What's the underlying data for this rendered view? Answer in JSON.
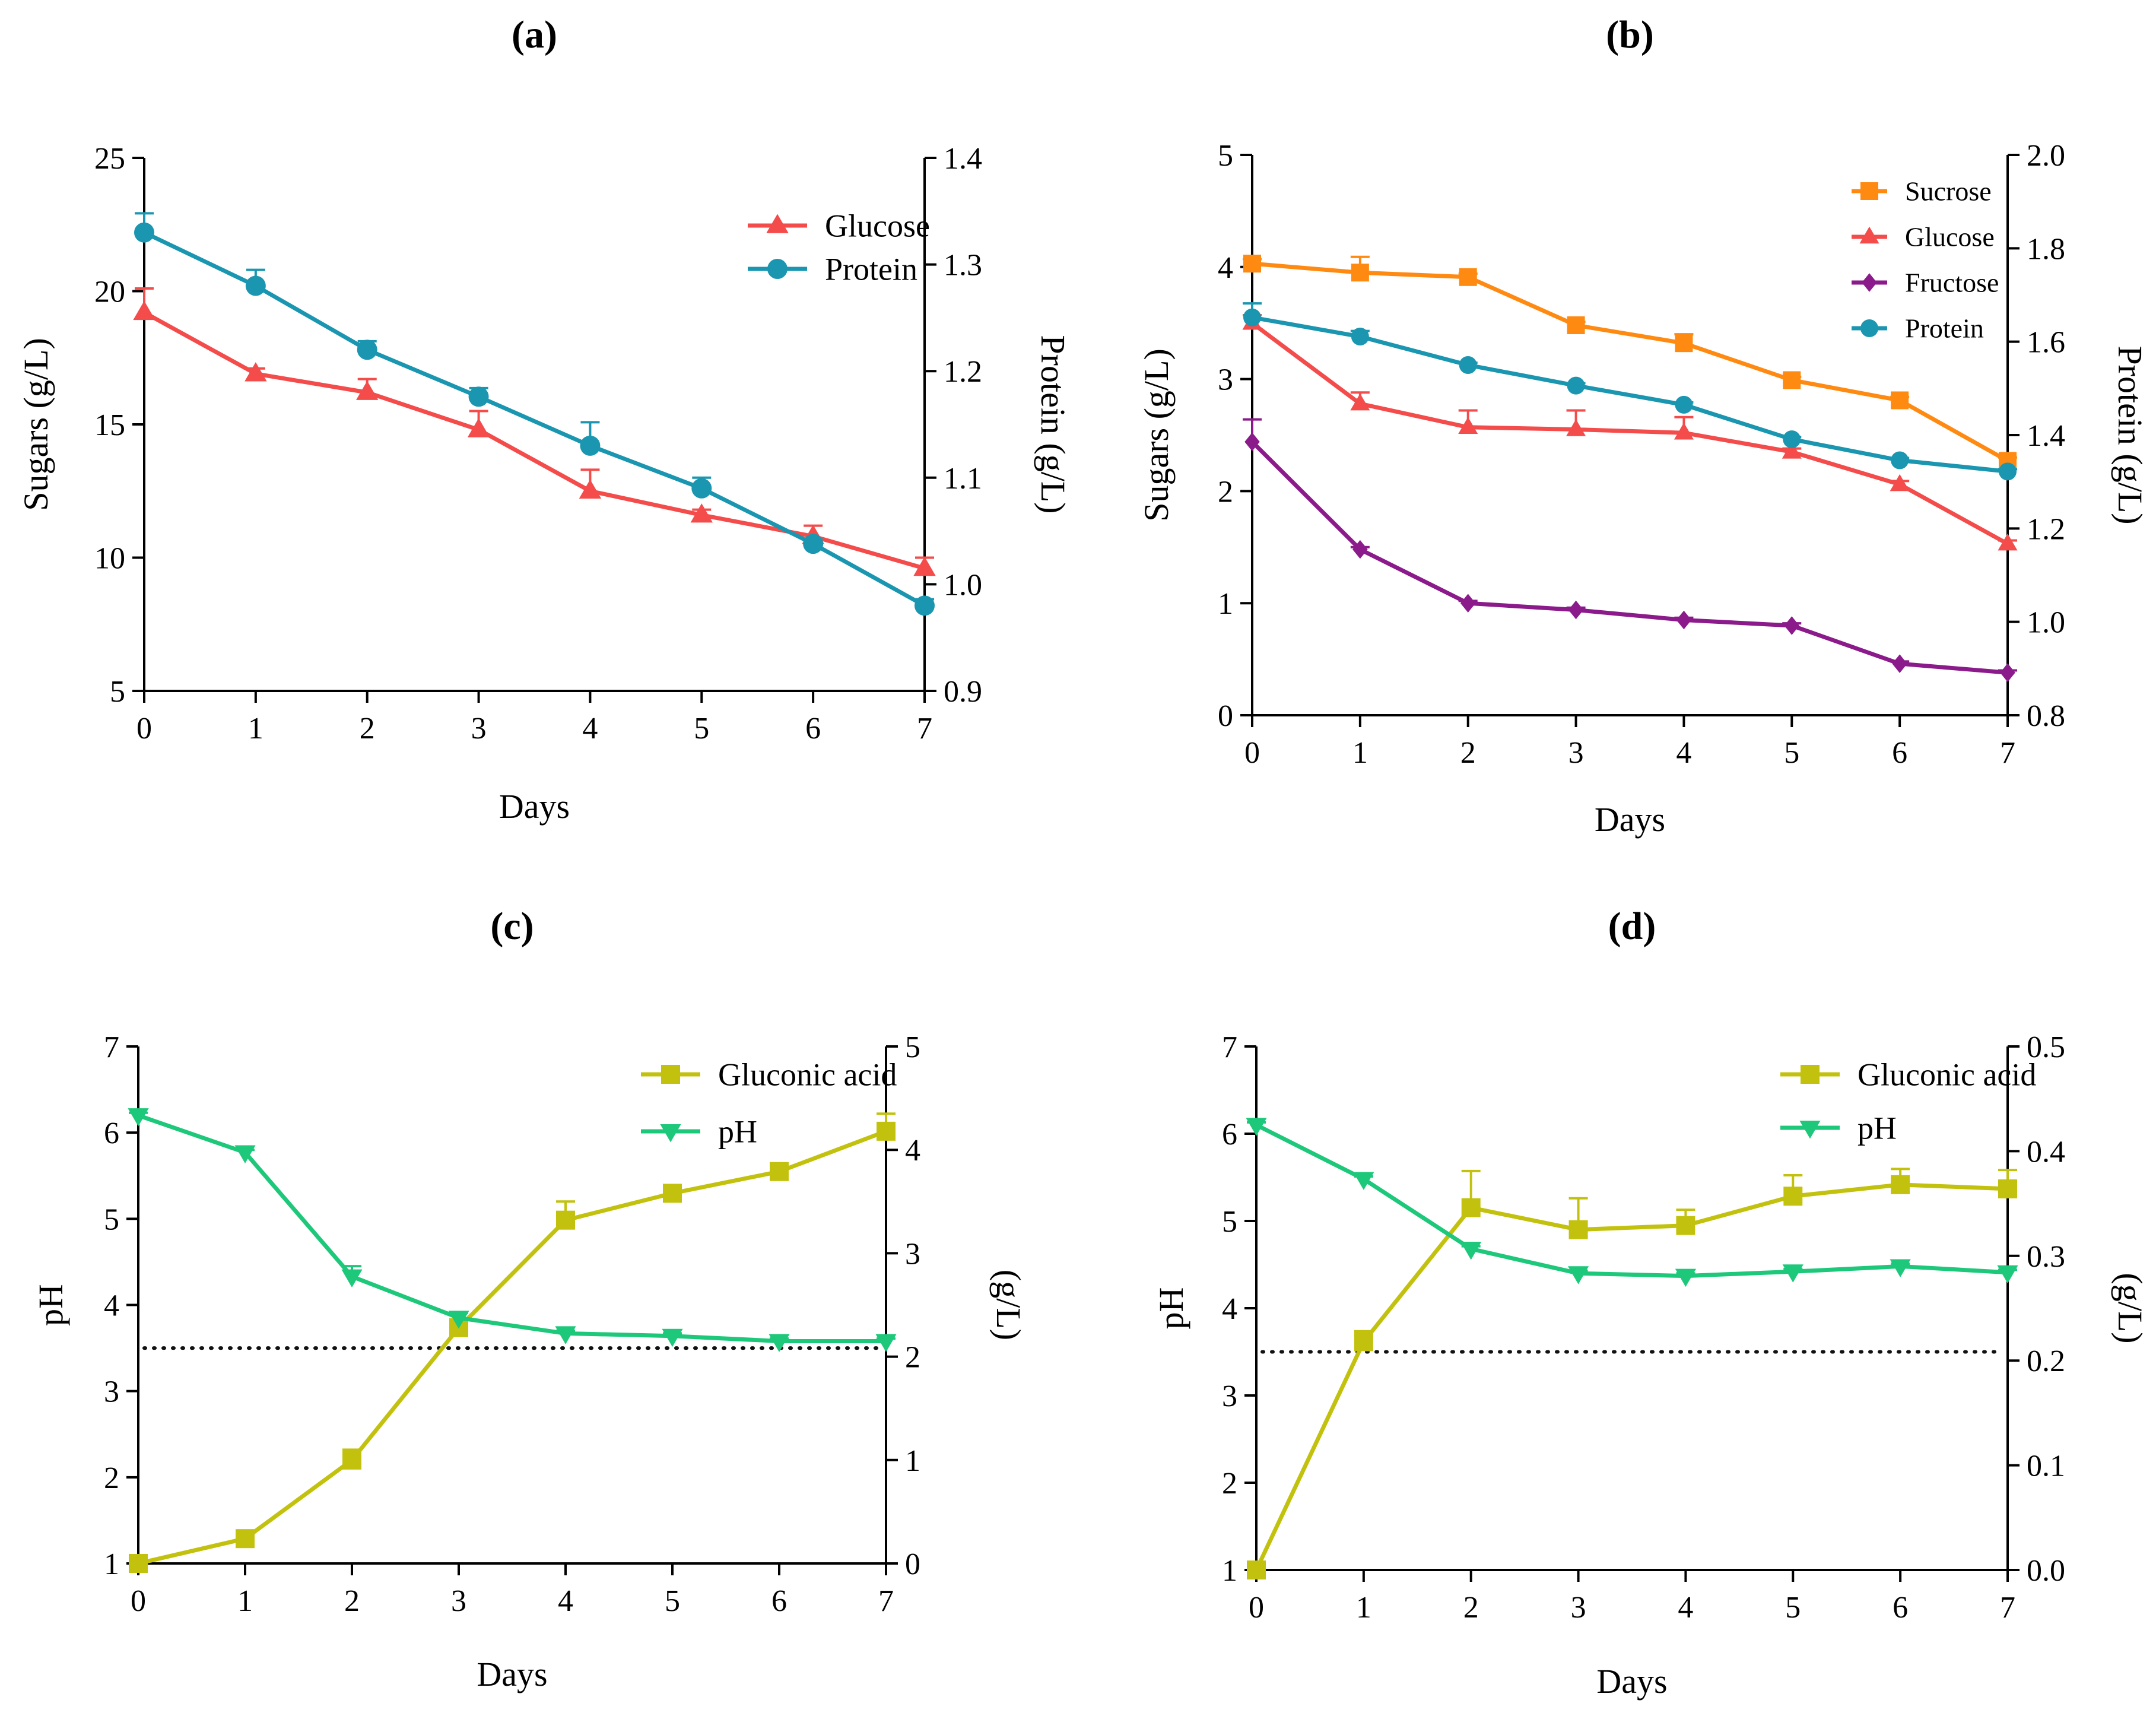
{
  "chart_data": [
    {
      "id": "a",
      "type": "line",
      "title": "(a)",
      "xlabel": "Days",
      "ylabel": "Sugars (g/L)",
      "y2label": "Protein (g/L)",
      "x": [
        0,
        1,
        2,
        3,
        4,
        5,
        6,
        7
      ],
      "xlim": [
        0,
        7
      ],
      "xticks": [
        "0",
        "1",
        "2",
        "3",
        "4",
        "5",
        "6",
        "7"
      ],
      "ylim": [
        5,
        25
      ],
      "yticks": [
        "5",
        "10",
        "15",
        "20",
        "25"
      ],
      "y2lim": [
        0.9,
        1.4
      ],
      "y2ticks": [
        "0.9",
        "1.0",
        "1.1",
        "1.2",
        "1.3",
        "1.4"
      ],
      "legend_position": "top-right",
      "series": [
        {
          "name": "Glucose",
          "axis": "left",
          "color": "#f44b4b",
          "marker": "triangle-up",
          "values": [
            19.2,
            16.9,
            16.2,
            14.8,
            12.5,
            11.6,
            10.8,
            9.6
          ],
          "errors": [
            0.9,
            0.2,
            0.5,
            0.7,
            0.8,
            0.2,
            0.4,
            0.4
          ]
        },
        {
          "name": "Protein",
          "axis": "right",
          "color": "#1a96b0",
          "marker": "circle",
          "values": [
            1.33,
            1.28,
            1.22,
            1.176,
            1.13,
            1.09,
            1.038,
            0.98
          ],
          "errors": [
            0.018,
            0.015,
            0.008,
            0.008,
            0.022,
            0.01,
            0.004,
            0.006
          ]
        }
      ]
    },
    {
      "id": "b",
      "type": "line",
      "title": "(b)",
      "xlabel": "Days",
      "ylabel": "Sugars (g/L)",
      "y2label": "Protein (g/L)",
      "x": [
        0,
        1,
        2,
        3,
        4,
        5,
        6,
        7
      ],
      "xlim": [
        0,
        7
      ],
      "xticks": [
        "0",
        "1",
        "2",
        "3",
        "4",
        "5",
        "6",
        "7"
      ],
      "ylim": [
        0,
        5
      ],
      "yticks": [
        "0",
        "1",
        "2",
        "3",
        "4",
        "5"
      ],
      "y2lim": [
        0.8,
        2.0
      ],
      "y2ticks": [
        "0.8",
        "1.0",
        "1.2",
        "1.4",
        "1.6",
        "1.8",
        "2.0"
      ],
      "legend_position": "top-right",
      "series": [
        {
          "name": "Sucrose",
          "axis": "left",
          "color": "#ff8a12",
          "marker": "square",
          "values": [
            4.03,
            3.95,
            3.91,
            3.48,
            3.32,
            2.99,
            2.81,
            2.27
          ],
          "errors": [
            0.04,
            0.14,
            0.03,
            0.03,
            0.08,
            0.03,
            0.03,
            0.03
          ]
        },
        {
          "name": "Glucose",
          "axis": "left",
          "color": "#f44b4b",
          "marker": "triangle-up",
          "values": [
            3.5,
            2.78,
            2.57,
            2.55,
            2.52,
            2.35,
            2.06,
            1.53
          ],
          "errors": [
            0.07,
            0.1,
            0.15,
            0.17,
            0.14,
            0.03,
            0.03,
            0.03
          ]
        },
        {
          "name": "Fructose",
          "axis": "left",
          "color": "#8b1a8b",
          "marker": "diamond",
          "values": [
            2.44,
            1.48,
            1.0,
            0.94,
            0.85,
            0.8,
            0.46,
            0.38
          ],
          "errors": [
            0.2,
            0.02,
            0.02,
            0.02,
            0.02,
            0.02,
            0.02,
            0.02
          ]
        },
        {
          "name": "Protein",
          "axis": "right",
          "color": "#1a96b0",
          "marker": "circle",
          "values": [
            1.652,
            1.611,
            1.55,
            1.506,
            1.465,
            1.391,
            1.346,
            1.322
          ],
          "errors": [
            0.03,
            0.012,
            0.005,
            0.005,
            0.005,
            0.005,
            0.005,
            0.005
          ]
        }
      ]
    },
    {
      "id": "c",
      "type": "line",
      "title": "(c)",
      "xlabel": "Days",
      "ylabel": "pH",
      "y2label": "(g/L)",
      "x": [
        0,
        1,
        2,
        3,
        4,
        5,
        6,
        7
      ],
      "xlim": [
        0,
        7
      ],
      "xticks": [
        "0",
        "1",
        "2",
        "3",
        "4",
        "5",
        "6",
        "7"
      ],
      "ylim": [
        1,
        7
      ],
      "yticks": [
        "1",
        "2",
        "3",
        "4",
        "5",
        "6",
        "7"
      ],
      "y2lim": [
        0,
        5
      ],
      "y2ticks": [
        "0",
        "1",
        "2",
        "3",
        "4",
        "5"
      ],
      "reference_line": {
        "axis": "left",
        "value": 3.5,
        "style": "dotted"
      },
      "legend_position": "top-right",
      "series": [
        {
          "name": "Gluconic acid",
          "axis": "right",
          "color": "#c2c20e",
          "marker": "square",
          "values": [
            0.0,
            0.24,
            1.0,
            2.28,
            3.32,
            3.58,
            3.79,
            4.18
          ],
          "errors": [
            0.03,
            0.03,
            0.1,
            0.08,
            0.18,
            0.05,
            0.08,
            0.17
          ]
        },
        {
          "name": "pH",
          "axis": "left",
          "color": "#1ec87a",
          "marker": "triangle-down",
          "values": [
            6.2,
            5.77,
            4.33,
            3.85,
            3.67,
            3.64,
            3.58,
            3.58
          ],
          "errors": [
            0.03,
            0.03,
            0.12,
            0.06,
            0.03,
            0.03,
            0.03,
            0.03
          ]
        }
      ]
    },
    {
      "id": "d",
      "type": "line",
      "title": "(d)",
      "xlabel": "Days",
      "ylabel": "pH",
      "y2label": "(g/L)",
      "x": [
        0,
        1,
        2,
        3,
        4,
        5,
        6,
        7
      ],
      "xlim": [
        0,
        7
      ],
      "xticks": [
        "0",
        "1",
        "2",
        "3",
        "4",
        "5",
        "6",
        "7"
      ],
      "ylim": [
        1,
        7
      ],
      "yticks": [
        "1",
        "2",
        "3",
        "4",
        "5",
        "6",
        "7"
      ],
      "y2lim": [
        0.0,
        0.5
      ],
      "y2ticks": [
        "0.0",
        "0.1",
        "0.2",
        "0.3",
        "0.4",
        "0.5"
      ],
      "reference_line": {
        "axis": "left",
        "value": 3.5,
        "style": "dotted"
      },
      "legend_position": "top-right",
      "series": [
        {
          "name": "Gluconic acid",
          "axis": "right",
          "color": "#c2c20e",
          "marker": "square",
          "values": [
            0.0,
            0.218,
            0.346,
            0.325,
            0.329,
            0.357,
            0.368,
            0.364
          ],
          "errors": [
            0.003,
            0.01,
            0.035,
            0.03,
            0.015,
            0.02,
            0.015,
            0.018
          ]
        },
        {
          "name": "pH",
          "axis": "left",
          "color": "#1ec87a",
          "marker": "triangle-down",
          "values": [
            6.1,
            5.48,
            4.68,
            4.4,
            4.37,
            4.42,
            4.48,
            4.41
          ],
          "errors": [
            0.03,
            0.03,
            0.03,
            0.03,
            0.03,
            0.03,
            0.03,
            0.03
          ]
        }
      ]
    }
  ]
}
